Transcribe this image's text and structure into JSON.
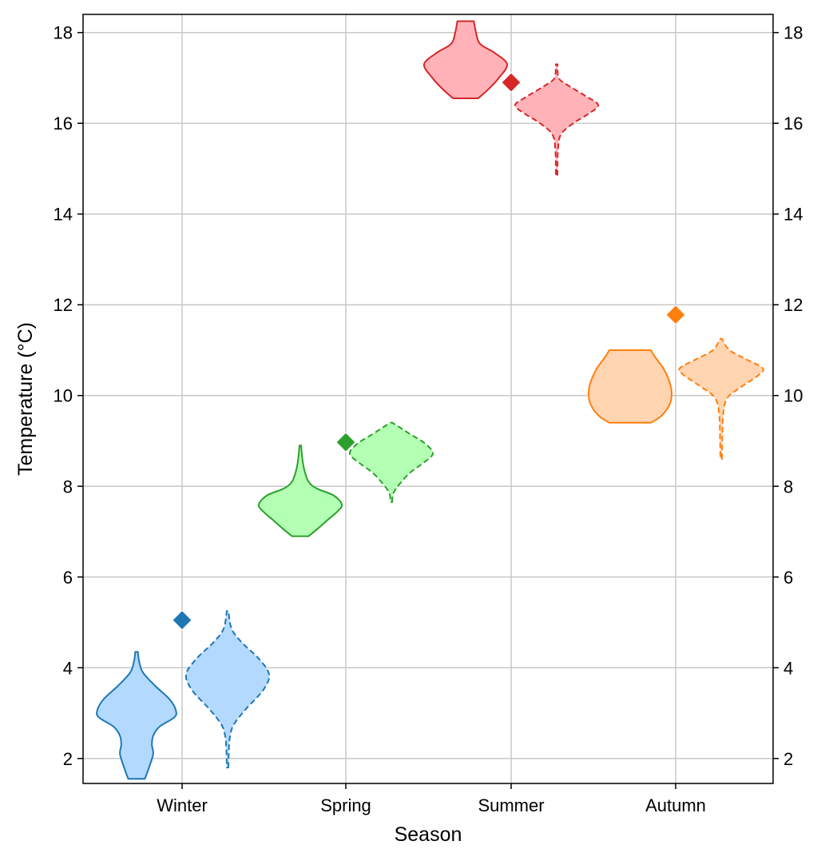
{
  "chart_data": {
    "type": "violin",
    "xlabel": "Season",
    "ylabel": "Temperature (°C)",
    "ylim": [
      1.45,
      18.4
    ],
    "yticks": [
      2,
      4,
      6,
      8,
      10,
      12,
      14,
      16,
      18
    ],
    "grid": true,
    "categories": [
      "Winter",
      "Spring",
      "Summer",
      "Autumn"
    ],
    "series": [
      {
        "category": "Winter",
        "colors": {
          "line": "#1f77b4",
          "fill": "#b3d9ff"
        },
        "marker_value": 5.05,
        "left_violin": {
          "style": "solid",
          "profile": [
            [
              1.55,
              0.2
            ],
            [
              1.8,
              0.3
            ],
            [
              2.1,
              0.4
            ],
            [
              2.3,
              0.37
            ],
            [
              2.5,
              0.4
            ],
            [
              2.7,
              0.55
            ],
            [
              2.9,
              0.9
            ],
            [
              3.05,
              0.95
            ],
            [
              3.3,
              0.8
            ],
            [
              3.6,
              0.45
            ],
            [
              3.9,
              0.15
            ],
            [
              4.15,
              0.06
            ],
            [
              4.35,
              0.03
            ]
          ]
        },
        "right_violin": {
          "style": "dashed",
          "profile": [
            [
              1.8,
              0.02
            ],
            [
              2.2,
              0.03
            ],
            [
              2.5,
              0.06
            ],
            [
              2.75,
              0.15
            ],
            [
              3.1,
              0.45
            ],
            [
              3.5,
              0.85
            ],
            [
              3.85,
              1.0
            ],
            [
              4.2,
              0.75
            ],
            [
              4.55,
              0.35
            ],
            [
              4.85,
              0.1
            ],
            [
              5.25,
              0.02
            ]
          ]
        }
      },
      {
        "category": "Spring",
        "colors": {
          "line": "#2ca02c",
          "fill": "#b3ffb3"
        },
        "marker_value": 8.97,
        "left_violin": {
          "style": "solid",
          "profile": [
            [
              6.9,
              0.2
            ],
            [
              7.05,
              0.4
            ],
            [
              7.25,
              0.65
            ],
            [
              7.45,
              0.9
            ],
            [
              7.6,
              1.0
            ],
            [
              7.8,
              0.8
            ],
            [
              7.95,
              0.4
            ],
            [
              8.1,
              0.2
            ],
            [
              8.35,
              0.1
            ],
            [
              8.6,
              0.05
            ],
            [
              8.9,
              0.02
            ]
          ]
        },
        "right_violin": {
          "style": "dashed",
          "profile": [
            [
              7.65,
              0.02
            ],
            [
              7.85,
              0.05
            ],
            [
              8.05,
              0.2
            ],
            [
              8.3,
              0.45
            ],
            [
              8.5,
              0.75
            ],
            [
              8.72,
              1.0
            ],
            [
              8.95,
              0.8
            ],
            [
              9.15,
              0.45
            ],
            [
              9.3,
              0.2
            ],
            [
              9.4,
              0.02
            ]
          ]
        }
      },
      {
        "category": "Summer",
        "colors": {
          "line": "#d62728",
          "fill": "#ffb3b8"
        },
        "marker_value": 16.9,
        "left_violin": {
          "style": "solid",
          "profile": [
            [
              16.55,
              0.3
            ],
            [
              16.75,
              0.55
            ],
            [
              17.0,
              0.8
            ],
            [
              17.3,
              1.0
            ],
            [
              17.55,
              0.7
            ],
            [
              17.75,
              0.35
            ],
            [
              18.0,
              0.25
            ],
            [
              18.25,
              0.2
            ]
          ]
        },
        "right_violin": {
          "style": "dashed",
          "profile": [
            [
              14.85,
              0.02
            ],
            [
              15.4,
              0.03
            ],
            [
              15.75,
              0.1
            ],
            [
              16.0,
              0.4
            ],
            [
              16.2,
              0.75
            ],
            [
              16.4,
              1.0
            ],
            [
              16.6,
              0.7
            ],
            [
              16.85,
              0.25
            ],
            [
              17.0,
              0.05
            ],
            [
              17.3,
              0.02
            ]
          ]
        }
      },
      {
        "category": "Autumn",
        "colors": {
          "line": "#ff7f0e",
          "fill": "#ffd4b0"
        },
        "marker_value": 11.78,
        "left_violin": {
          "style": "solid",
          "profile": [
            [
              9.4,
              0.5
            ],
            [
              9.55,
              0.75
            ],
            [
              9.8,
              0.95
            ],
            [
              10.05,
              1.0
            ],
            [
              10.3,
              0.95
            ],
            [
              10.6,
              0.8
            ],
            [
              10.85,
              0.6
            ],
            [
              11.0,
              0.5
            ]
          ]
        },
        "right_violin": {
          "style": "dashed",
          "profile": [
            [
              8.6,
              0.02
            ],
            [
              9.2,
              0.03
            ],
            [
              9.6,
              0.05
            ],
            [
              9.95,
              0.15
            ],
            [
              10.2,
              0.5
            ],
            [
              10.45,
              0.9
            ],
            [
              10.6,
              1.0
            ],
            [
              10.8,
              0.6
            ],
            [
              11.0,
              0.2
            ],
            [
              11.25,
              0.02
            ]
          ]
        }
      }
    ]
  }
}
